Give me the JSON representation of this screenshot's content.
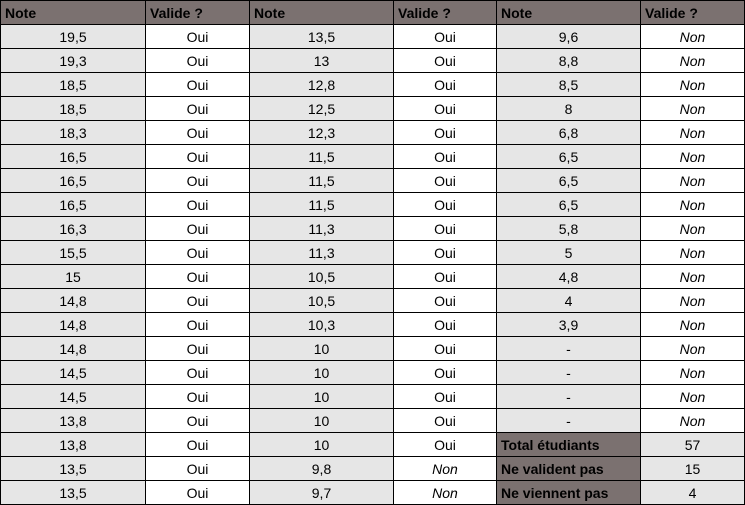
{
  "headers": [
    "Note",
    "Valide ?",
    "Note",
    "Valide ?",
    "Note",
    "Valide ?"
  ],
  "col1": [
    [
      "19,5",
      "Oui"
    ],
    [
      "19,3",
      "Oui"
    ],
    [
      "18,5",
      "Oui"
    ],
    [
      "18,5",
      "Oui"
    ],
    [
      "18,3",
      "Oui"
    ],
    [
      "16,5",
      "Oui"
    ],
    [
      "16,5",
      "Oui"
    ],
    [
      "16,5",
      "Oui"
    ],
    [
      "16,3",
      "Oui"
    ],
    [
      "15,5",
      "Oui"
    ],
    [
      "15",
      "Oui"
    ],
    [
      "14,8",
      "Oui"
    ],
    [
      "14,8",
      "Oui"
    ],
    [
      "14,8",
      "Oui"
    ],
    [
      "14,5",
      "Oui"
    ],
    [
      "14,5",
      "Oui"
    ],
    [
      "13,8",
      "Oui"
    ],
    [
      "13,8",
      "Oui"
    ],
    [
      "13,5",
      "Oui"
    ],
    [
      "13,5",
      "Oui"
    ]
  ],
  "col2": [
    [
      "13,5",
      "Oui"
    ],
    [
      "13",
      "Oui"
    ],
    [
      "12,8",
      "Oui"
    ],
    [
      "12,5",
      "Oui"
    ],
    [
      "12,3",
      "Oui"
    ],
    [
      "11,5",
      "Oui"
    ],
    [
      "11,5",
      "Oui"
    ],
    [
      "11,5",
      "Oui"
    ],
    [
      "11,3",
      "Oui"
    ],
    [
      "11,3",
      "Oui"
    ],
    [
      "10,5",
      "Oui"
    ],
    [
      "10,5",
      "Oui"
    ],
    [
      "10,3",
      "Oui"
    ],
    [
      "10",
      "Oui"
    ],
    [
      "10",
      "Oui"
    ],
    [
      "10",
      "Oui"
    ],
    [
      "10",
      "Oui"
    ],
    [
      "10",
      "Oui"
    ],
    [
      "9,8",
      "Non"
    ],
    [
      "9,7",
      "Non"
    ]
  ],
  "col3": [
    [
      "9,6",
      "Non"
    ],
    [
      "8,8",
      "Non"
    ],
    [
      "8,5",
      "Non"
    ],
    [
      "8",
      "Non"
    ],
    [
      "6,8",
      "Non"
    ],
    [
      "6,5",
      "Non"
    ],
    [
      "6,5",
      "Non"
    ],
    [
      "6,5",
      "Non"
    ],
    [
      "5,8",
      "Non"
    ],
    [
      "5",
      "Non"
    ],
    [
      "4,8",
      "Non"
    ],
    [
      "4",
      "Non"
    ],
    [
      "3,9",
      "Non"
    ],
    [
      "-",
      "Non"
    ],
    [
      "-",
      "Non"
    ],
    [
      "-",
      "Non"
    ],
    [
      "-",
      "Non"
    ]
  ],
  "summary": [
    {
      "label": "Total étudiants",
      "value": "57"
    },
    {
      "label": "Ne valident pas",
      "value": "15"
    },
    {
      "label": "Ne viennent pas",
      "value": "4"
    }
  ],
  "colors": {
    "header_bg": "#7b7170",
    "shade_bg": "#e6e6e6"
  }
}
